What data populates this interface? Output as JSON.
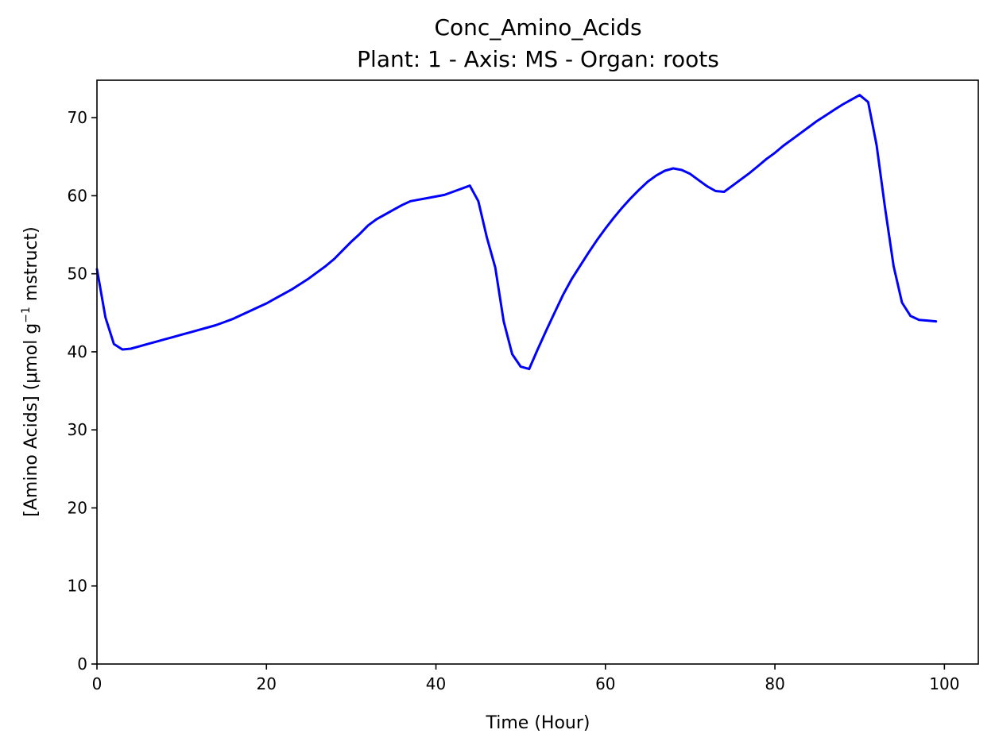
{
  "chart_data": {
    "type": "line",
    "title": "Conc_Amino_Acids",
    "subtitle": "Plant: 1 - Axis: MS - Organ: roots",
    "xlabel": "Time (Hour)",
    "ylabel_main": "[Amino Acids] (μmol g",
    "ylabel_sup": "−1",
    "ylabel_tail": " mstruct)",
    "xlim": [
      0,
      104
    ],
    "ylim": [
      0,
      74.8
    ],
    "xticks": [
      0,
      20,
      40,
      60,
      80,
      100
    ],
    "yticks": [
      0,
      10,
      20,
      30,
      40,
      50,
      60,
      70
    ],
    "grid": false,
    "series": [
      {
        "color": "#0000ff",
        "x": [
          0,
          1,
          2,
          3,
          4,
          5,
          6,
          7,
          8,
          9,
          10,
          11,
          12,
          13,
          14,
          15,
          16,
          17,
          18,
          19,
          20,
          21,
          22,
          23,
          24,
          25,
          26,
          27,
          28,
          29,
          30,
          31,
          32,
          33,
          34,
          35,
          36,
          37,
          38,
          39,
          40,
          41,
          42,
          43,
          44,
          45,
          46,
          47,
          48,
          49,
          50,
          51,
          52,
          53,
          54,
          55,
          56,
          57,
          58,
          59,
          60,
          61,
          62,
          63,
          64,
          65,
          66,
          67,
          68,
          69,
          70,
          71,
          72,
          73,
          74,
          75,
          76,
          77,
          78,
          79,
          80,
          81,
          82,
          83,
          84,
          85,
          86,
          87,
          88,
          89,
          90,
          91,
          92,
          93,
          94,
          95,
          96,
          97,
          98,
          99
        ],
        "y": [
          50.6,
          44.4,
          41.0,
          40.3,
          40.4,
          40.7,
          41.0,
          41.3,
          41.6,
          41.9,
          42.2,
          42.5,
          42.8,
          43.1,
          43.4,
          43.8,
          44.2,
          44.7,
          45.2,
          45.7,
          46.2,
          46.8,
          47.4,
          48.0,
          48.7,
          49.4,
          50.2,
          51.0,
          51.9,
          53.0,
          54.1,
          55.1,
          56.2,
          57.0,
          57.6,
          58.2,
          58.8,
          59.3,
          59.5,
          59.7,
          59.9,
          60.1,
          60.5,
          60.9,
          61.3,
          59.3,
          54.7,
          50.8,
          43.9,
          39.7,
          38.1,
          37.8,
          40.3,
          42.7,
          45.0,
          47.3,
          49.3,
          51.0,
          52.7,
          54.3,
          55.8,
          57.2,
          58.5,
          59.7,
          60.8,
          61.8,
          62.6,
          63.2,
          63.5,
          63.3,
          62.8,
          62.0,
          61.2,
          60.6,
          60.5,
          61.3,
          62.1,
          62.9,
          63.8,
          64.7,
          65.5,
          66.4,
          67.2,
          68.0,
          68.8,
          69.6,
          70.3,
          71.0,
          71.7,
          72.3,
          72.9,
          72.0,
          66.5,
          58.4,
          51.0,
          46.3,
          44.6,
          44.1,
          44.0,
          43.9
        ]
      }
    ]
  }
}
